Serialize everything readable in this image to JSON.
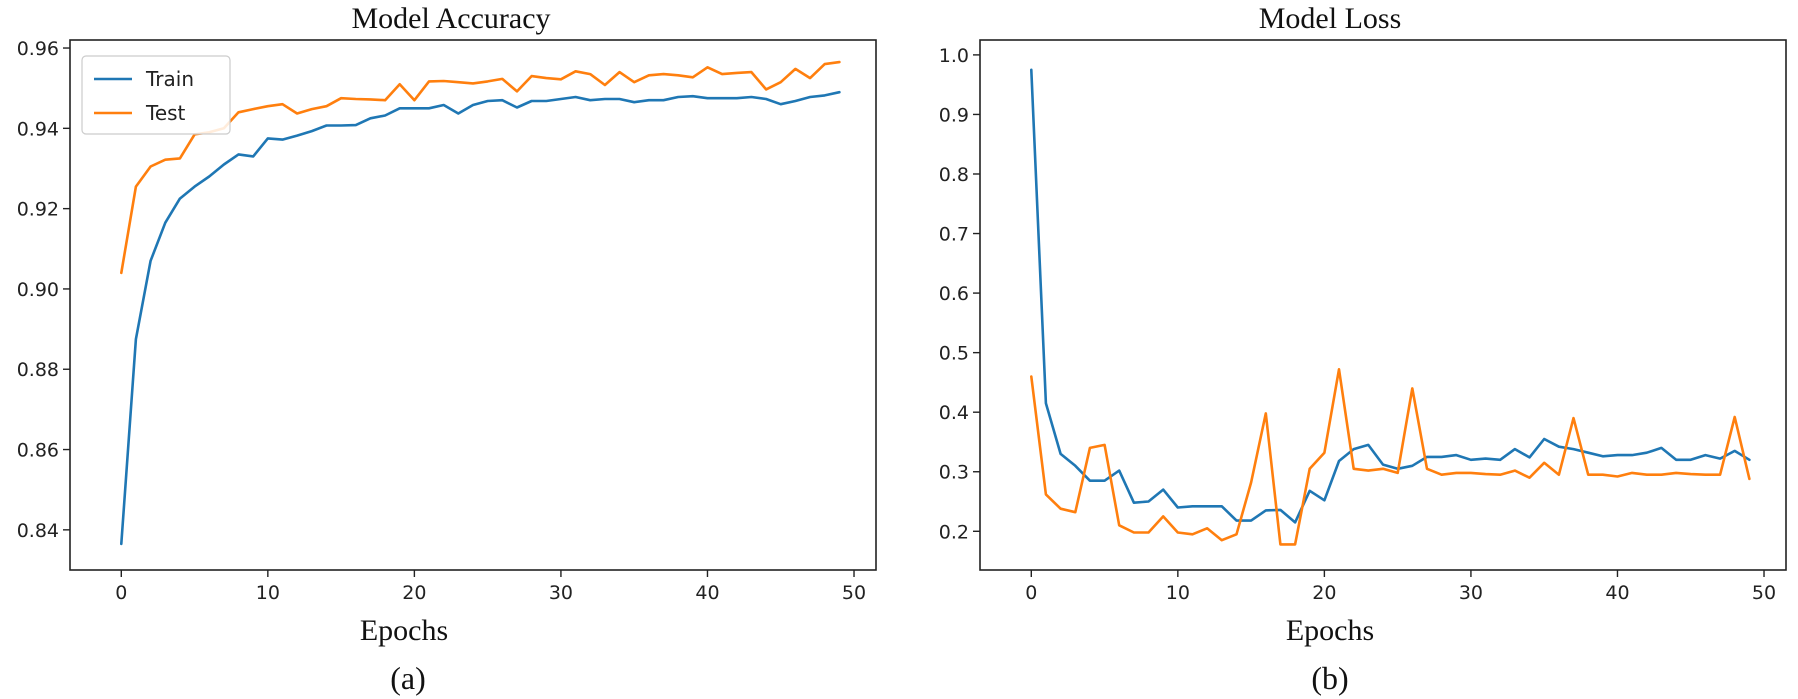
{
  "colors": {
    "train": "#1f77b4",
    "test": "#ff7f0e"
  },
  "chart_data": [
    {
      "type": "line",
      "title": "Model Accuracy",
      "xlabel": "Epochs",
      "ylabel": "",
      "caption": "(a)",
      "legend": {
        "position": "top-left",
        "entries": [
          "Train",
          "Test"
        ]
      },
      "grid": false,
      "xlim": [
        -3.5,
        51.5
      ],
      "ylim": [
        0.83,
        0.962
      ],
      "xticks": [
        0,
        10,
        20,
        30,
        40,
        50
      ],
      "xtick_labels": [
        "0",
        "10",
        "20",
        "30",
        "40",
        "50"
      ],
      "yticks": [
        0.84,
        0.86,
        0.88,
        0.9,
        0.92,
        0.94,
        0.96
      ],
      "ytick_labels": [
        "0.84",
        "0.86",
        "0.88",
        "0.90",
        "0.92",
        "0.94",
        "0.96"
      ],
      "x": [
        0,
        1,
        2,
        3,
        4,
        5,
        6,
        7,
        8,
        9,
        10,
        11,
        12,
        13,
        14,
        15,
        16,
        17,
        18,
        19,
        20,
        21,
        22,
        23,
        24,
        25,
        26,
        27,
        28,
        29,
        30,
        31,
        32,
        33,
        34,
        35,
        36,
        37,
        38,
        39,
        40,
        41,
        42,
        43,
        44,
        45,
        46,
        47,
        48,
        49
      ],
      "series": [
        {
          "name": "Train",
          "color_key": "train",
          "values": [
            0.8365,
            0.8875,
            0.907,
            0.9165,
            0.9225,
            0.9255,
            0.928,
            0.931,
            0.9335,
            0.933,
            0.9375,
            0.9372,
            0.9382,
            0.9393,
            0.9407,
            0.9407,
            0.9408,
            0.9425,
            0.9432,
            0.945,
            0.945,
            0.945,
            0.9458,
            0.9437,
            0.9458,
            0.9468,
            0.947,
            0.9452,
            0.9468,
            0.9468,
            0.9473,
            0.9478,
            0.947,
            0.9473,
            0.9473,
            0.9465,
            0.947,
            0.947,
            0.9478,
            0.948,
            0.9475,
            0.9475,
            0.9475,
            0.9478,
            0.9473,
            0.946,
            0.9468,
            0.9478,
            0.9482,
            0.949
          ]
        },
        {
          "name": "Test",
          "color_key": "test",
          "values": [
            0.904,
            0.9255,
            0.9305,
            0.9322,
            0.9325,
            0.9385,
            0.939,
            0.94,
            0.944,
            0.9448,
            0.9455,
            0.946,
            0.9437,
            0.9448,
            0.9455,
            0.9475,
            0.9473,
            0.9472,
            0.947,
            0.951,
            0.947,
            0.9517,
            0.9518,
            0.9515,
            0.9512,
            0.9517,
            0.9523,
            0.9492,
            0.953,
            0.9525,
            0.9522,
            0.9542,
            0.9535,
            0.9508,
            0.954,
            0.9515,
            0.9532,
            0.9535,
            0.9532,
            0.9527,
            0.9552,
            0.9535,
            0.9538,
            0.954,
            0.9497,
            0.9515,
            0.9548,
            0.9525,
            0.956,
            0.9565
          ]
        }
      ]
    },
    {
      "type": "line",
      "title": "Model Loss",
      "xlabel": "Epochs",
      "ylabel": "",
      "caption": "(b)",
      "grid": false,
      "xlim": [
        -3.5,
        51.5
      ],
      "ylim": [
        0.135,
        1.025
      ],
      "xticks": [
        0,
        10,
        20,
        30,
        40,
        50
      ],
      "xtick_labels": [
        "0",
        "10",
        "20",
        "30",
        "40",
        "50"
      ],
      "yticks": [
        0.2,
        0.3,
        0.4,
        0.5,
        0.6,
        0.7,
        0.8,
        0.9,
        1.0
      ],
      "ytick_labels": [
        "0.2",
        "0.3",
        "0.4",
        "0.5",
        "0.6",
        "0.7",
        "0.8",
        "0.9",
        "1.0"
      ],
      "x": [
        0,
        1,
        2,
        3,
        4,
        5,
        6,
        7,
        8,
        9,
        10,
        11,
        12,
        13,
        14,
        15,
        16,
        17,
        18,
        19,
        20,
        21,
        22,
        23,
        24,
        25,
        26,
        27,
        28,
        29,
        30,
        31,
        32,
        33,
        34,
        35,
        36,
        37,
        38,
        39,
        40,
        41,
        42,
        43,
        44,
        45,
        46,
        47,
        48,
        49
      ],
      "series": [
        {
          "name": "Train",
          "color_key": "train",
          "values": [
            0.975,
            0.415,
            0.33,
            0.31,
            0.285,
            0.285,
            0.302,
            0.248,
            0.25,
            0.27,
            0.24,
            0.242,
            0.242,
            0.242,
            0.218,
            0.218,
            0.235,
            0.236,
            0.215,
            0.268,
            0.252,
            0.318,
            0.338,
            0.345,
            0.312,
            0.305,
            0.31,
            0.325,
            0.325,
            0.328,
            0.32,
            0.322,
            0.32,
            0.338,
            0.324,
            0.355,
            0.342,
            0.338,
            0.332,
            0.326,
            0.328,
            0.328,
            0.332,
            0.34,
            0.32,
            0.32,
            0.328,
            0.322,
            0.335,
            0.32
          ]
        },
        {
          "name": "Test",
          "color_key": "test",
          "values": [
            0.46,
            0.262,
            0.238,
            0.232,
            0.34,
            0.345,
            0.21,
            0.198,
            0.198,
            0.225,
            0.198,
            0.195,
            0.205,
            0.185,
            0.195,
            0.282,
            0.398,
            0.178,
            0.178,
            0.305,
            0.332,
            0.472,
            0.305,
            0.302,
            0.305,
            0.298,
            0.44,
            0.305,
            0.295,
            0.298,
            0.298,
            0.296,
            0.295,
            0.302,
            0.29,
            0.315,
            0.295,
            0.39,
            0.295,
            0.295,
            0.292,
            0.298,
            0.295,
            0.295,
            0.298,
            0.296,
            0.295,
            0.295,
            0.392,
            0.288
          ]
        }
      ]
    }
  ]
}
